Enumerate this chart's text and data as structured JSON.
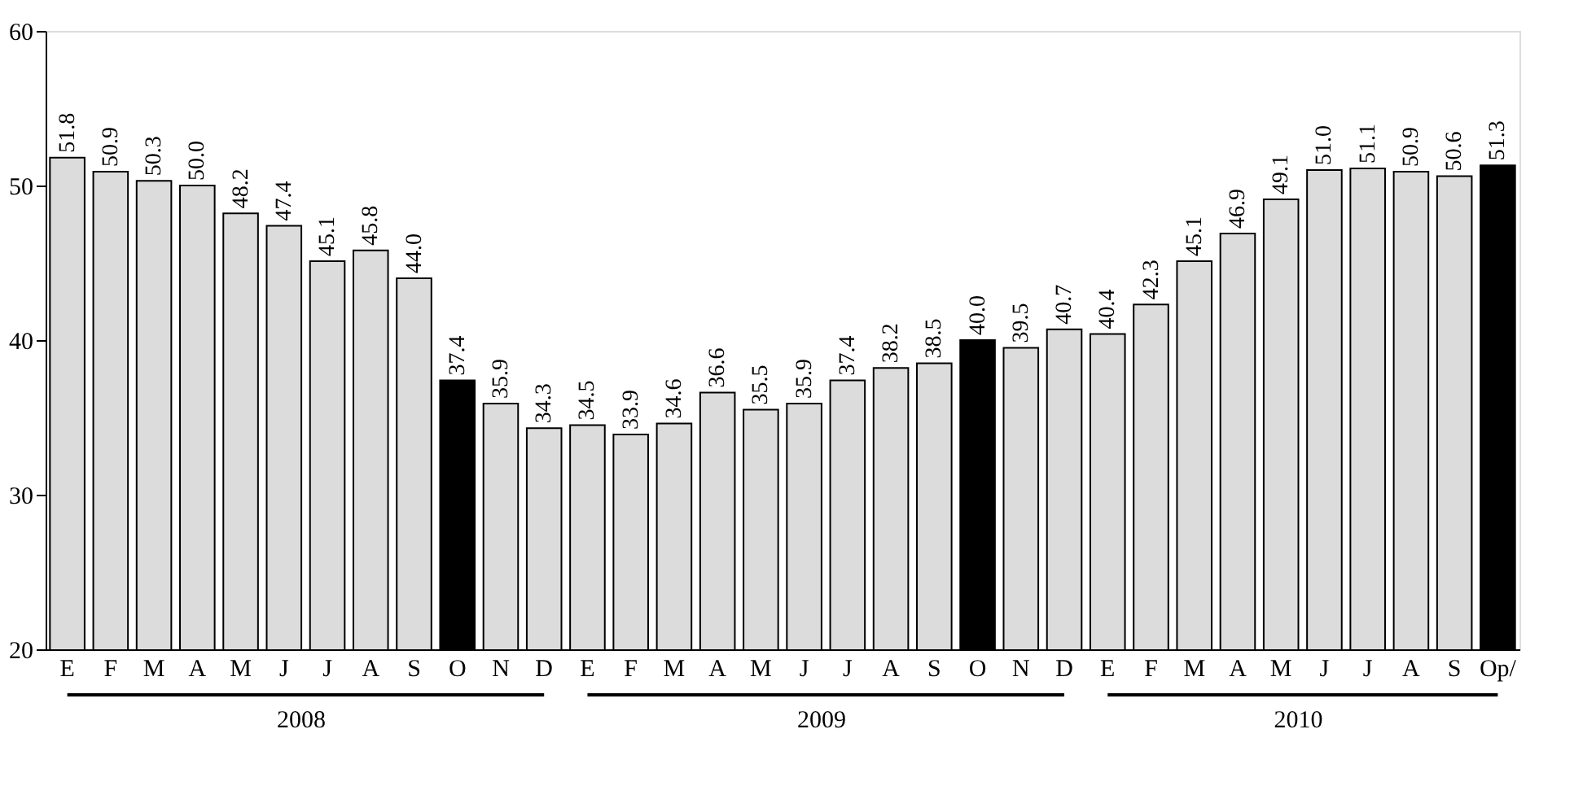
{
  "chart_data": {
    "type": "bar",
    "categories": [
      "E",
      "F",
      "M",
      "A",
      "M",
      "J",
      "J",
      "A",
      "S",
      "O",
      "N",
      "D",
      "E",
      "F",
      "M",
      "A",
      "M",
      "J",
      "J",
      "A",
      "S",
      "O",
      "N",
      "D",
      "E",
      "F",
      "M",
      "A",
      "M",
      "J",
      "J",
      "A",
      "S",
      "Op/"
    ],
    "values": [
      51.8,
      50.9,
      50.3,
      50.0,
      48.2,
      47.4,
      45.1,
      45.8,
      44.0,
      37.4,
      35.9,
      34.3,
      34.5,
      33.9,
      34.6,
      36.6,
      35.5,
      35.9,
      37.4,
      38.2,
      38.5,
      40.0,
      39.5,
      40.7,
      40.4,
      42.3,
      45.1,
      46.9,
      49.1,
      51.0,
      51.1,
      50.9,
      50.6,
      51.3
    ],
    "colors": [
      "#dcdcdc",
      "#dcdcdc",
      "#dcdcdc",
      "#dcdcdc",
      "#dcdcdc",
      "#dcdcdc",
      "#dcdcdc",
      "#dcdcdc",
      "#dcdcdc",
      "#000000",
      "#dcdcdc",
      "#dcdcdc",
      "#dcdcdc",
      "#dcdcdc",
      "#dcdcdc",
      "#dcdcdc",
      "#dcdcdc",
      "#dcdcdc",
      "#dcdcdc",
      "#dcdcdc",
      "#dcdcdc",
      "#000000",
      "#dcdcdc",
      "#dcdcdc",
      "#dcdcdc",
      "#dcdcdc",
      "#dcdcdc",
      "#dcdcdc",
      "#dcdcdc",
      "#dcdcdc",
      "#dcdcdc",
      "#dcdcdc",
      "#dcdcdc",
      "#000000"
    ],
    "value_labels": [
      "51.8",
      "50.9",
      "50.3",
      "50.0",
      "48.2",
      "47.4",
      "45.1",
      "45.8",
      "44.0",
      "37.4",
      "35.9",
      "34.3",
      "34.5",
      "33.9",
      "34.6",
      "36.6",
      "35.5",
      "35.9",
      "37.4",
      "38.2",
      "38.5",
      "40.0",
      "39.5",
      "40.7",
      "40.4",
      "42.3",
      "45.1",
      "46.9",
      "49.1",
      "51.0",
      "51.1",
      "50.9",
      "50.6",
      "51.3"
    ],
    "ylim": [
      20,
      60
    ],
    "yticks": [
      20,
      30,
      40,
      50,
      60
    ],
    "grid": false,
    "annotations": [
      "2008",
      "2009",
      "2010"
    ]
  }
}
